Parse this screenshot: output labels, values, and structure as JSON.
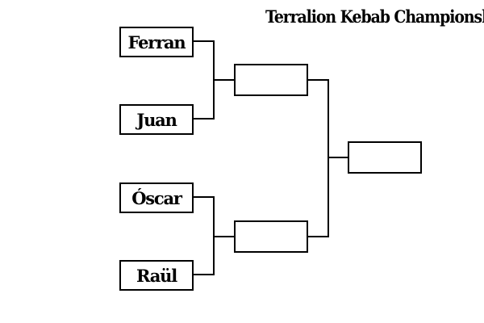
{
  "title": "Terralion Kebab Championship",
  "bracket": {
    "round1": [
      {
        "name": "Ferran"
      },
      {
        "name": "Juan"
      },
      {
        "name": "Óscar"
      },
      {
        "name": "Raül"
      }
    ],
    "semifinal": [
      {
        "name": ""
      },
      {
        "name": ""
      }
    ],
    "final": {
      "name": ""
    }
  },
  "colors": {
    "line": "#000000",
    "background": "#ffffff"
  }
}
